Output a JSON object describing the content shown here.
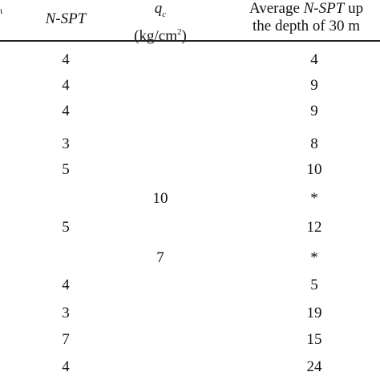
{
  "table": {
    "clipped_corner_mark": "ι",
    "headers": {
      "nspt": "N-SPT",
      "qc_symbol": "q",
      "qc_subscript": "c",
      "qc_unit_prefix": "(kg/cm",
      "qc_unit_power": "2",
      "qc_unit_suffix": ")",
      "avg_line1_prefix": "Average ",
      "avg_line1_italic": "N-SPT",
      "avg_line1_suffix": " up",
      "avg_line2": "the depth of 30 m"
    },
    "rows": [
      {
        "nspt": "4",
        "qc": "",
        "avg": "4"
      },
      {
        "nspt": "4",
        "qc": "",
        "avg": "9"
      },
      {
        "nspt": "4",
        "qc": "",
        "avg": "9"
      },
      {
        "nspt": "3",
        "qc": "",
        "avg": "8"
      },
      {
        "nspt": "5",
        "qc": "",
        "avg": "10"
      },
      {
        "nspt": "",
        "qc": "10",
        "avg": "*"
      },
      {
        "nspt": "5",
        "qc": "",
        "avg": "12"
      },
      {
        "nspt": "",
        "qc": "7",
        "avg": "*"
      },
      {
        "nspt": "4",
        "qc": "",
        "avg": "5"
      },
      {
        "nspt": "3",
        "qc": "",
        "avg": "19"
      },
      {
        "nspt": "7",
        "qc": "",
        "avg": "15"
      },
      {
        "nspt": "4",
        "qc": "",
        "avg": "24"
      }
    ]
  }
}
